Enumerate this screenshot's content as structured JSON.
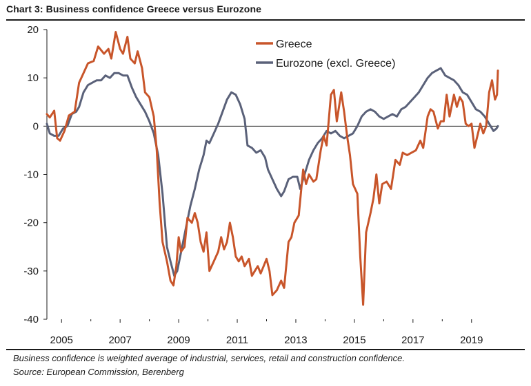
{
  "header": {
    "title": "Chart 3: Business confidence Greece versus Eurozone"
  },
  "footnote": {
    "note": "Business confidence is weighted average of industrial, services, retail and construction confidence.",
    "source": "Source: European Commission, Berenberg"
  },
  "colors": {
    "greece": "#c8552a",
    "eurozone": "#5a6179",
    "axis": "#1a1a1a"
  },
  "chart_data": {
    "type": "line",
    "title": "Business confidence Greece versus Eurozone",
    "xlabel": "",
    "ylabel": "",
    "xlim": [
      2004.5,
      2019.9
    ],
    "ylim": [
      -40,
      20
    ],
    "yticks": [
      20,
      10,
      0,
      -10,
      -20,
      -30,
      -40
    ],
    "xticks": [
      2005,
      2007,
      2009,
      2011,
      2013,
      2015,
      2017,
      2019
    ],
    "xtick_labels": [
      "2005",
      "2007",
      "2009",
      "2011",
      "2013",
      "2015",
      "2017",
      "2019"
    ],
    "legend_position": "top-center",
    "series": [
      {
        "name": "Greece",
        "color": "#c8552a",
        "points": [
          [
            2004.5,
            2.5
          ],
          [
            2004.6,
            1.8
          ],
          [
            2004.75,
            3.2
          ],
          [
            2004.85,
            -2.5
          ],
          [
            2004.95,
            -3.0
          ],
          [
            2005.1,
            -1.0
          ],
          [
            2005.25,
            2.2
          ],
          [
            2005.45,
            3.0
          ],
          [
            2005.6,
            9.0
          ],
          [
            2005.75,
            11.0
          ],
          [
            2005.9,
            13.0
          ],
          [
            2006.1,
            13.5
          ],
          [
            2006.25,
            16.5
          ],
          [
            2006.45,
            15.0
          ],
          [
            2006.6,
            16.0
          ],
          [
            2006.7,
            14.0
          ],
          [
            2006.85,
            19.5
          ],
          [
            2007.0,
            16.0
          ],
          [
            2007.1,
            15.0
          ],
          [
            2007.25,
            18.5
          ],
          [
            2007.35,
            14.0
          ],
          [
            2007.5,
            13.0
          ],
          [
            2007.6,
            15.5
          ],
          [
            2007.75,
            12.0
          ],
          [
            2007.85,
            7.0
          ],
          [
            2008.0,
            6.0
          ],
          [
            2008.15,
            2.0
          ],
          [
            2008.25,
            -5.0
          ],
          [
            2008.35,
            -16.0
          ],
          [
            2008.45,
            -24.0
          ],
          [
            2008.6,
            -28.0
          ],
          [
            2008.72,
            -32.0
          ],
          [
            2008.82,
            -33.0
          ],
          [
            2008.92,
            -29.0
          ],
          [
            2009.0,
            -23.0
          ],
          [
            2009.08,
            -26.0
          ],
          [
            2009.2,
            -25.0
          ],
          [
            2009.3,
            -19.0
          ],
          [
            2009.45,
            -20.0
          ],
          [
            2009.55,
            -18.0
          ],
          [
            2009.65,
            -20.0
          ],
          [
            2009.75,
            -24.0
          ],
          [
            2009.85,
            -26.0
          ],
          [
            2009.95,
            -22.0
          ],
          [
            2010.05,
            -30.0
          ],
          [
            2010.2,
            -28.0
          ],
          [
            2010.35,
            -26.0
          ],
          [
            2010.45,
            -23.0
          ],
          [
            2010.55,
            -25.5
          ],
          [
            2010.65,
            -24.0
          ],
          [
            2010.75,
            -20.0
          ],
          [
            2010.85,
            -23.0
          ],
          [
            2010.95,
            -27.0
          ],
          [
            2011.05,
            -28.0
          ],
          [
            2011.15,
            -27.0
          ],
          [
            2011.25,
            -29.0
          ],
          [
            2011.4,
            -27.5
          ],
          [
            2011.5,
            -31.0
          ],
          [
            2011.6,
            -30.0
          ],
          [
            2011.7,
            -29.0
          ],
          [
            2011.8,
            -30.5
          ],
          [
            2011.9,
            -29.0
          ],
          [
            2012.0,
            -27.5
          ],
          [
            2012.1,
            -30.0
          ],
          [
            2012.2,
            -35.0
          ],
          [
            2012.35,
            -34.0
          ],
          [
            2012.5,
            -32.0
          ],
          [
            2012.6,
            -33.5
          ],
          [
            2012.75,
            -24.0
          ],
          [
            2012.85,
            -23.0
          ],
          [
            2012.95,
            -20.0
          ],
          [
            2013.1,
            -18.5
          ],
          [
            2013.25,
            -9.0
          ],
          [
            2013.35,
            -12.0
          ],
          [
            2013.45,
            -10.0
          ],
          [
            2013.6,
            -11.5
          ],
          [
            2013.7,
            -11.0
          ],
          [
            2013.85,
            -5.0
          ],
          [
            2013.95,
            -2.0
          ],
          [
            2014.05,
            -4.0
          ],
          [
            2014.2,
            6.5
          ],
          [
            2014.3,
            7.5
          ],
          [
            2014.4,
            1.0
          ],
          [
            2014.55,
            7.0
          ],
          [
            2014.65,
            3.0
          ],
          [
            2014.75,
            -2.0
          ],
          [
            2014.85,
            -6.0
          ],
          [
            2014.95,
            -12.0
          ],
          [
            2015.1,
            -14.0
          ],
          [
            2015.2,
            -27.0
          ],
          [
            2015.3,
            -37.0
          ],
          [
            2015.4,
            -22.0
          ],
          [
            2015.55,
            -18.0
          ],
          [
            2015.65,
            -15.0
          ],
          [
            2015.75,
            -10.0
          ],
          [
            2015.85,
            -16.0
          ],
          [
            2015.95,
            -12.0
          ],
          [
            2016.1,
            -11.5
          ],
          [
            2016.25,
            -13.0
          ],
          [
            2016.4,
            -7.0
          ],
          [
            2016.55,
            -8.0
          ],
          [
            2016.65,
            -5.5
          ],
          [
            2016.8,
            -6.0
          ],
          [
            2016.95,
            -5.5
          ],
          [
            2017.1,
            -5.0
          ],
          [
            2017.25,
            -3.0
          ],
          [
            2017.35,
            -4.5
          ],
          [
            2017.5,
            2.0
          ],
          [
            2017.6,
            3.5
          ],
          [
            2017.7,
            3.0
          ],
          [
            2017.85,
            -0.5
          ],
          [
            2017.95,
            1.0
          ],
          [
            2018.05,
            1.0
          ],
          [
            2018.15,
            6.5
          ],
          [
            2018.25,
            2.0
          ],
          [
            2018.4,
            6.5
          ],
          [
            2018.5,
            4.0
          ],
          [
            2018.6,
            6.0
          ],
          [
            2018.7,
            5.0
          ],
          [
            2018.8,
            0.5
          ],
          [
            2018.9,
            0.0
          ],
          [
            2019.0,
            0.5
          ],
          [
            2019.1,
            -4.5
          ],
          [
            2019.2,
            -2.0
          ],
          [
            2019.3,
            0.5
          ],
          [
            2019.4,
            -1.5
          ],
          [
            2019.5,
            0.0
          ],
          [
            2019.6,
            7.0
          ],
          [
            2019.7,
            9.5
          ],
          [
            2019.8,
            5.5
          ],
          [
            2019.87,
            6.5
          ],
          [
            2019.9,
            11.5
          ]
        ]
      },
      {
        "name": "Eurozone (excl. Greece)",
        "color": "#5a6179",
        "points": [
          [
            2004.5,
            0.5
          ],
          [
            2004.6,
            -1.5
          ],
          [
            2004.75,
            -2.0
          ],
          [
            2004.9,
            -2.0
          ],
          [
            2005.05,
            -0.5
          ],
          [
            2005.2,
            0.0
          ],
          [
            2005.35,
            2.5
          ],
          [
            2005.5,
            3.0
          ],
          [
            2005.6,
            4.0
          ],
          [
            2005.75,
            7.0
          ],
          [
            2005.9,
            8.5
          ],
          [
            2006.05,
            9.0
          ],
          [
            2006.2,
            9.5
          ],
          [
            2006.35,
            9.5
          ],
          [
            2006.5,
            10.5
          ],
          [
            2006.65,
            10.0
          ],
          [
            2006.8,
            11.0
          ],
          [
            2006.95,
            11.0
          ],
          [
            2007.1,
            10.5
          ],
          [
            2007.25,
            10.5
          ],
          [
            2007.4,
            8.0
          ],
          [
            2007.55,
            6.0
          ],
          [
            2007.7,
            4.5
          ],
          [
            2007.85,
            3.0
          ],
          [
            2008.0,
            1.0
          ],
          [
            2008.15,
            -1.5
          ],
          [
            2008.3,
            -6.0
          ],
          [
            2008.45,
            -14.0
          ],
          [
            2008.6,
            -25.0
          ],
          [
            2008.72,
            -28.0
          ],
          [
            2008.85,
            -31.0
          ],
          [
            2008.95,
            -30.0
          ],
          [
            2009.1,
            -25.5
          ],
          [
            2009.25,
            -21.0
          ],
          [
            2009.4,
            -16.5
          ],
          [
            2009.55,
            -13.0
          ],
          [
            2009.7,
            -9.0
          ],
          [
            2009.85,
            -6.0
          ],
          [
            2009.95,
            -3.0
          ],
          [
            2010.05,
            -3.5
          ],
          [
            2010.2,
            -1.5
          ],
          [
            2010.35,
            0.5
          ],
          [
            2010.5,
            3.0
          ],
          [
            2010.65,
            5.5
          ],
          [
            2010.8,
            7.0
          ],
          [
            2010.95,
            6.5
          ],
          [
            2011.1,
            4.5
          ],
          [
            2011.25,
            1.5
          ],
          [
            2011.35,
            -4.0
          ],
          [
            2011.5,
            -4.5
          ],
          [
            2011.65,
            -5.5
          ],
          [
            2011.8,
            -5.0
          ],
          [
            2011.95,
            -6.5
          ],
          [
            2012.05,
            -9.0
          ],
          [
            2012.2,
            -11.0
          ],
          [
            2012.35,
            -13.0
          ],
          [
            2012.5,
            -14.5
          ],
          [
            2012.6,
            -13.5
          ],
          [
            2012.75,
            -11.0
          ],
          [
            2012.9,
            -10.5
          ],
          [
            2013.05,
            -10.5
          ],
          [
            2013.15,
            -13.0
          ],
          [
            2013.3,
            -10.0
          ],
          [
            2013.45,
            -7.0
          ],
          [
            2013.6,
            -5.0
          ],
          [
            2013.75,
            -3.5
          ],
          [
            2013.9,
            -2.5
          ],
          [
            2014.05,
            -1.0
          ],
          [
            2014.2,
            -1.5
          ],
          [
            2014.35,
            -1.0
          ],
          [
            2014.5,
            -2.0
          ],
          [
            2014.65,
            -2.5
          ],
          [
            2014.8,
            -2.0
          ],
          [
            2014.95,
            -1.5
          ],
          [
            2015.1,
            0.0
          ],
          [
            2015.25,
            2.0
          ],
          [
            2015.4,
            3.0
          ],
          [
            2015.55,
            3.5
          ],
          [
            2015.7,
            3.0
          ],
          [
            2015.85,
            2.0
          ],
          [
            2016.0,
            1.5
          ],
          [
            2016.15,
            2.0
          ],
          [
            2016.3,
            2.5
          ],
          [
            2016.45,
            2.0
          ],
          [
            2016.6,
            3.5
          ],
          [
            2016.75,
            4.0
          ],
          [
            2016.9,
            5.0
          ],
          [
            2017.05,
            6.0
          ],
          [
            2017.2,
            7.0
          ],
          [
            2017.35,
            8.5
          ],
          [
            2017.5,
            10.0
          ],
          [
            2017.65,
            11.0
          ],
          [
            2017.8,
            11.5
          ],
          [
            2017.95,
            12.0
          ],
          [
            2018.1,
            10.5
          ],
          [
            2018.25,
            10.0
          ],
          [
            2018.4,
            9.5
          ],
          [
            2018.55,
            8.5
          ],
          [
            2018.7,
            7.0
          ],
          [
            2018.85,
            6.5
          ],
          [
            2019.0,
            5.0
          ],
          [
            2019.15,
            3.5
          ],
          [
            2019.3,
            3.0
          ],
          [
            2019.45,
            2.0
          ],
          [
            2019.6,
            0.5
          ],
          [
            2019.75,
            -1.0
          ],
          [
            2019.85,
            -0.5
          ],
          [
            2019.9,
            0.0
          ]
        ]
      }
    ]
  }
}
